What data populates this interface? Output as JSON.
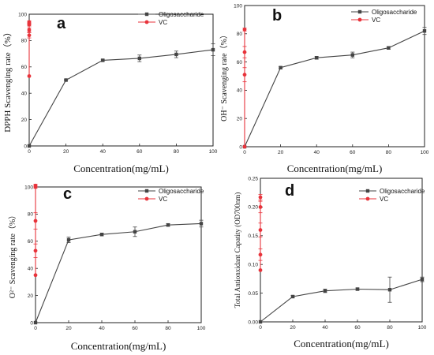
{
  "chart_data": [
    {
      "type": "line",
      "panel_label": "a",
      "ylabel": "DPPH Scavenging rate（%）",
      "xlabel": "Concentration(mg/mL)",
      "xlim": [
        0,
        100
      ],
      "ylim": [
        0,
        100
      ],
      "xticks": [
        0,
        20,
        40,
        60,
        80,
        100
      ],
      "yticks": [
        0,
        20,
        40,
        60,
        80,
        100
      ],
      "legend_position": "top-right",
      "series": [
        {
          "name": "Oligosaccharide",
          "color": "#444444",
          "marker": "square",
          "x": [
            0,
            20,
            40,
            60,
            80,
            100
          ],
          "y": [
            0,
            50,
            65,
            66.5,
            69.5,
            73
          ],
          "err": [
            0,
            0.5,
            0.8,
            2.5,
            2.5,
            4.5
          ]
        },
        {
          "name": "VC",
          "color": "#e8333b",
          "marker": "circle",
          "x": [
            0,
            0,
            0,
            0,
            0,
            0
          ],
          "y": [
            53,
            84,
            88,
            92,
            93,
            94
          ],
          "err": [
            0,
            2,
            1.5,
            1,
            1,
            1
          ]
        }
      ]
    },
    {
      "type": "line",
      "panel_label": "b",
      "ylabel": "OH⁻ Scavenging rate（%）",
      "xlabel": "Concentration(mg/mL)",
      "xlim": [
        0,
        100
      ],
      "ylim": [
        0,
        100
      ],
      "xticks": [
        0,
        20,
        40,
        60,
        80,
        100
      ],
      "yticks": [
        0,
        20,
        40,
        60,
        80,
        100
      ],
      "legend_position": "top-right",
      "series": [
        {
          "name": "Oligosaccharide",
          "color": "#444444",
          "marker": "square",
          "x": [
            0,
            20,
            40,
            60,
            80,
            100
          ],
          "y": [
            0,
            56,
            63,
            65,
            70,
            82
          ],
          "err": [
            0,
            0.8,
            1,
            2,
            1,
            2.5
          ]
        },
        {
          "name": "VC",
          "color": "#e8333b",
          "marker": "circle",
          "x": [
            0,
            0,
            0,
            0
          ],
          "y": [
            0,
            51,
            67,
            83
          ],
          "err": [
            0,
            5,
            4,
            1
          ]
        }
      ]
    },
    {
      "type": "line",
      "panel_label": "c",
      "ylabel": "O²⁻ Scavenging rate（%）",
      "xlabel": "Concentration(mg/mL)",
      "xlim": [
        0,
        100
      ],
      "ylim": [
        0,
        100
      ],
      "xticks": [
        0,
        20,
        40,
        60,
        80,
        100
      ],
      "yticks": [
        0,
        20,
        40,
        60,
        80,
        100
      ],
      "legend_position": "top-right",
      "series": [
        {
          "name": "Oligosaccharide",
          "color": "#444444",
          "marker": "square",
          "x": [
            0,
            20,
            40,
            60,
            80,
            100
          ],
          "y": [
            0,
            61,
            65,
            67,
            72,
            73
          ],
          "err": [
            0,
            2,
            1,
            3.5,
            1,
            2.5
          ]
        },
        {
          "name": "VC",
          "color": "#e8333b",
          "marker": "circle",
          "x": [
            0,
            0,
            0,
            0,
            0
          ],
          "y": [
            35,
            53,
            75,
            100,
            101
          ],
          "err": [
            0,
            5,
            6,
            1,
            1
          ]
        }
      ]
    },
    {
      "type": "line",
      "panel_label": "d",
      "ylabel": "Total Antionxidant Capatity (OD700nm)",
      "xlabel": "Concentration(mg/mL)",
      "xlim": [
        0,
        100
      ],
      "ylim": [
        0,
        0.25
      ],
      "xticks": [
        0,
        20,
        40,
        60,
        80,
        100
      ],
      "yticks": [
        0.0,
        0.05,
        0.1,
        0.15,
        0.2,
        0.25
      ],
      "legend_position": "top-right",
      "series": [
        {
          "name": "Oligosaccharide",
          "color": "#444444",
          "marker": "square",
          "x": [
            0,
            20,
            40,
            60,
            80,
            100
          ],
          "y": [
            0,
            0.044,
            0.054,
            0.057,
            0.056,
            0.074
          ],
          "err": [
            0,
            0.002,
            0.003,
            0.002,
            0.022,
            0.004
          ]
        },
        {
          "name": "VC",
          "color": "#e8333b",
          "marker": "circle",
          "x": [
            0,
            0,
            0,
            0,
            0
          ],
          "y": [
            0.09,
            0.117,
            0.16,
            0.2,
            0.217
          ],
          "err": [
            0,
            0.01,
            0.012,
            0.01,
            0.005
          ]
        }
      ]
    }
  ]
}
